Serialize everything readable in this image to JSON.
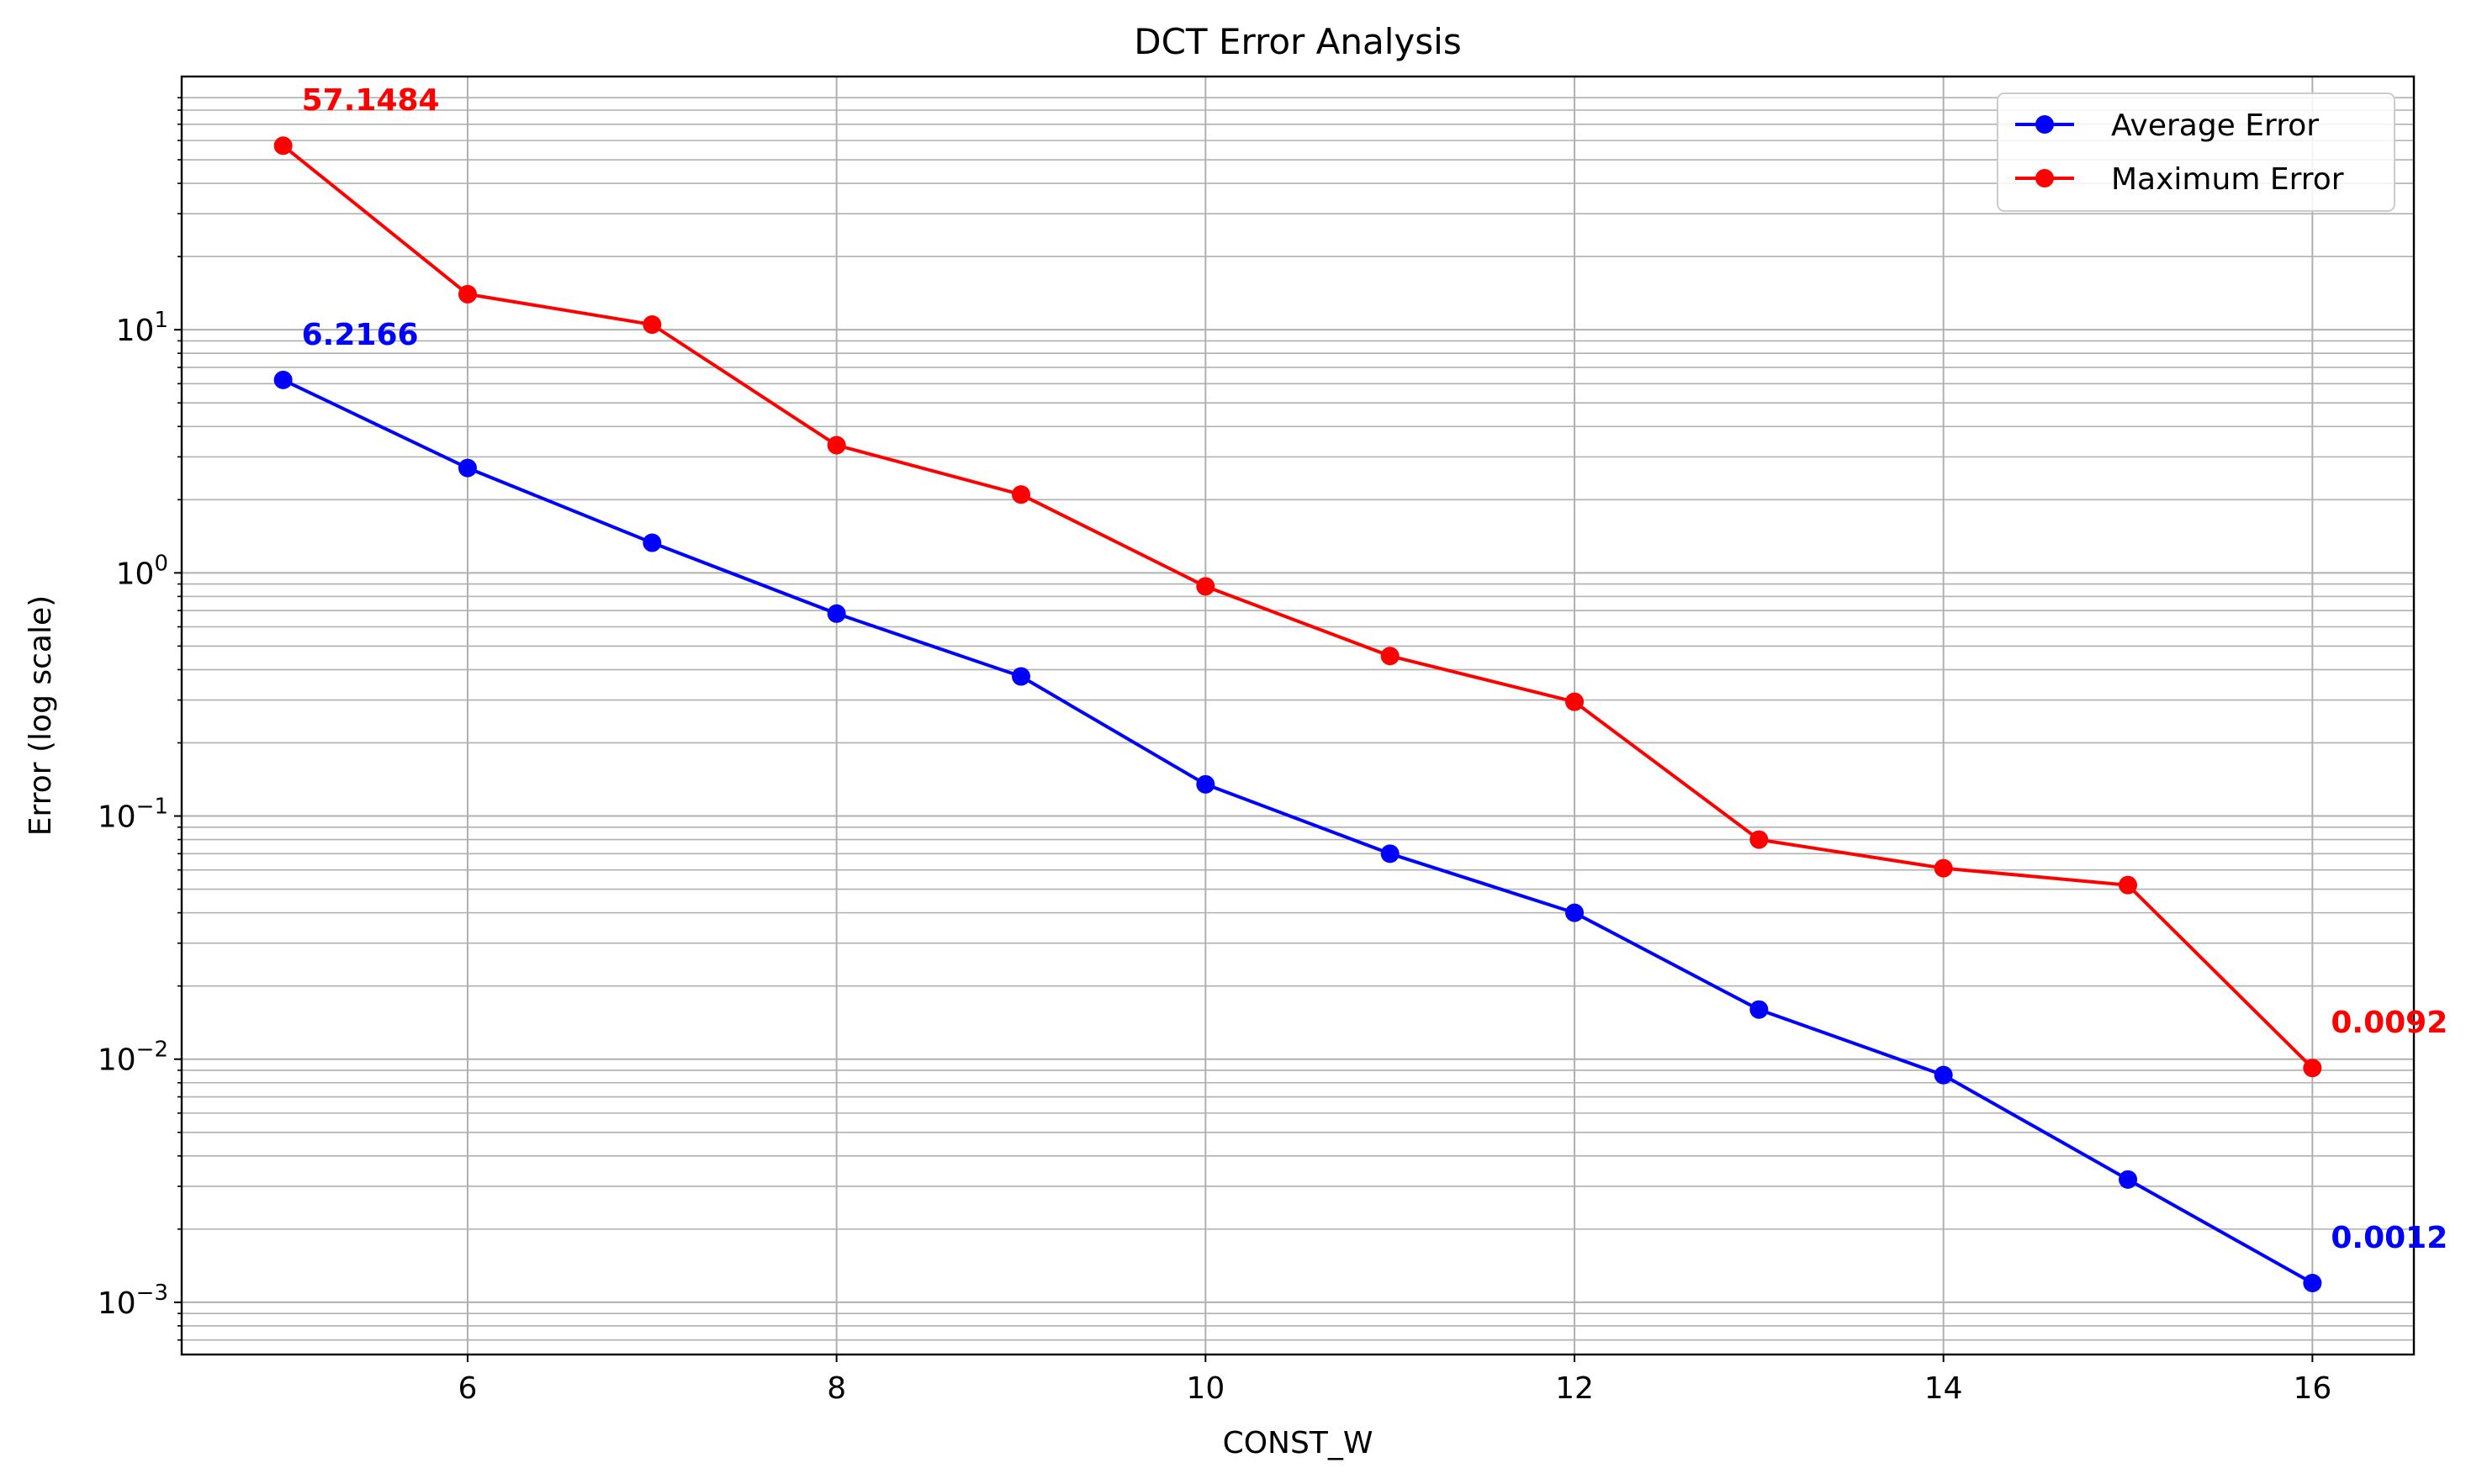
{
  "chart_data": {
    "type": "line",
    "title": "DCT Error Analysis",
    "xlabel": "CONST_W",
    "ylabel": "Error (log scale)",
    "x": [
      5,
      6,
      7,
      8,
      9,
      10,
      11,
      12,
      13,
      14,
      15,
      16
    ],
    "xlim": [
      4.45,
      16.55
    ],
    "xticks": [
      6,
      8,
      10,
      12,
      14,
      16
    ],
    "ylim": [
      0.00061,
      110
    ],
    "yscale": "log",
    "yticks": [
      {
        "value": 0.001,
        "base": "10",
        "exp": "−3"
      },
      {
        "value": 0.01,
        "base": "10",
        "exp": "−2"
      },
      {
        "value": 0.1,
        "base": "10",
        "exp": "−1"
      },
      {
        "value": 1,
        "base": "10",
        "exp": "0"
      },
      {
        "value": 10,
        "base": "10",
        "exp": "1"
      }
    ],
    "grid": true,
    "legend_position": "top-right",
    "series": [
      {
        "name": "Average Error",
        "color": "#0000ff",
        "values": [
          6.2166,
          2.7,
          1.33,
          0.68,
          0.375,
          0.135,
          0.07,
          0.04,
          0.016,
          0.0086,
          0.0032,
          0.0012
        ]
      },
      {
        "name": "Maximum Error",
        "color": "#ff0000",
        "values": [
          57.1484,
          14.0,
          10.5,
          3.35,
          2.1,
          0.88,
          0.455,
          0.295,
          0.08,
          0.061,
          0.052,
          0.0092
        ]
      }
    ],
    "annotations": [
      {
        "text": "57.1484",
        "x": 5,
        "y": 57.1484,
        "color": "#ff0000"
      },
      {
        "text": "6.2166",
        "x": 5,
        "y": 6.2166,
        "color": "#0000ff"
      },
      {
        "text": "0.0092",
        "x": 16,
        "y": 0.0092,
        "color": "#ff0000"
      },
      {
        "text": "0.0012",
        "x": 16,
        "y": 0.0012,
        "color": "#0000ff"
      }
    ]
  }
}
